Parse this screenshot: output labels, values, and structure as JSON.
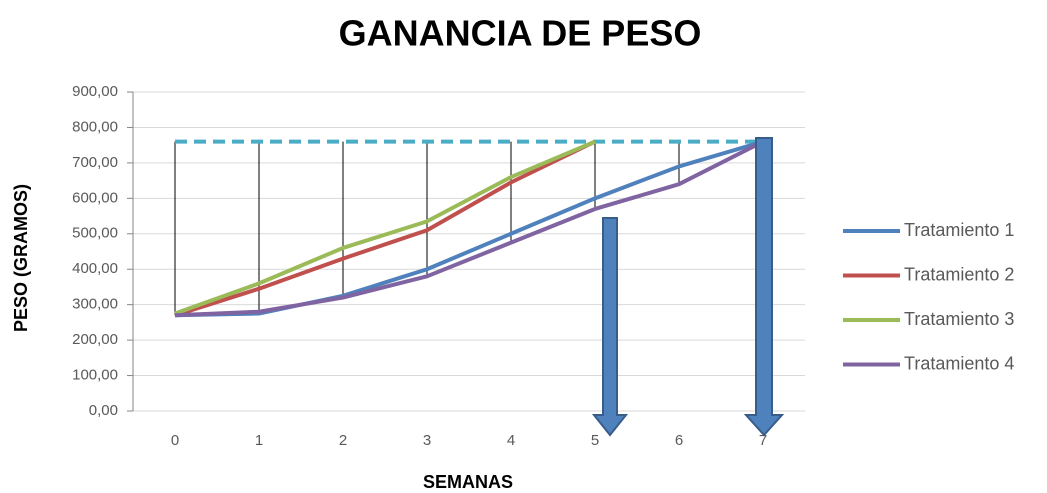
{
  "chart_data": {
    "type": "line",
    "title": "GANANCIA DE PESO",
    "x_label": "SEMANAS",
    "y_label": "PESO (GRAMOS)",
    "categories": [
      "0",
      "1",
      "2",
      "3",
      "4",
      "5",
      "6",
      "7"
    ],
    "series": [
      {
        "name": "Tratamiento 1",
        "color": "#4f81bd",
        "values": [
          270,
          275,
          325,
          400,
          500,
          600,
          690,
          760
        ]
      },
      {
        "name": "Tratamiento 2",
        "color": "#c0504d",
        "values": [
          270,
          345,
          430,
          510,
          645,
          760,
          null,
          null
        ]
      },
      {
        "name": "Tratamiento 3",
        "color": "#9bbb59",
        "values": [
          275,
          360,
          460,
          535,
          660,
          760,
          null,
          null
        ]
      },
      {
        "name": "Tratamiento 4",
        "color": "#8064a2",
        "values": [
          270,
          280,
          320,
          380,
          475,
          570,
          640,
          760
        ]
      }
    ],
    "reference_line": {
      "value": 760,
      "color": "#4bacc6"
    },
    "ylim": [
      0,
      900
    ],
    "yticks": [
      {
        "value": 0,
        "label": "0,00"
      },
      {
        "value": 100,
        "label": "100,00"
      },
      {
        "value": 200,
        "label": "200,00"
      },
      {
        "value": 300,
        "label": "300,00"
      },
      {
        "value": 400,
        "label": "400,00"
      },
      {
        "value": 500,
        "label": "500,00"
      },
      {
        "value": 600,
        "label": "600,00"
      },
      {
        "value": 700,
        "label": "700,00"
      },
      {
        "value": 800,
        "label": "800,00"
      },
      {
        "value": 900,
        "label": "900,00"
      }
    ],
    "grid": true,
    "legend": "right"
  }
}
